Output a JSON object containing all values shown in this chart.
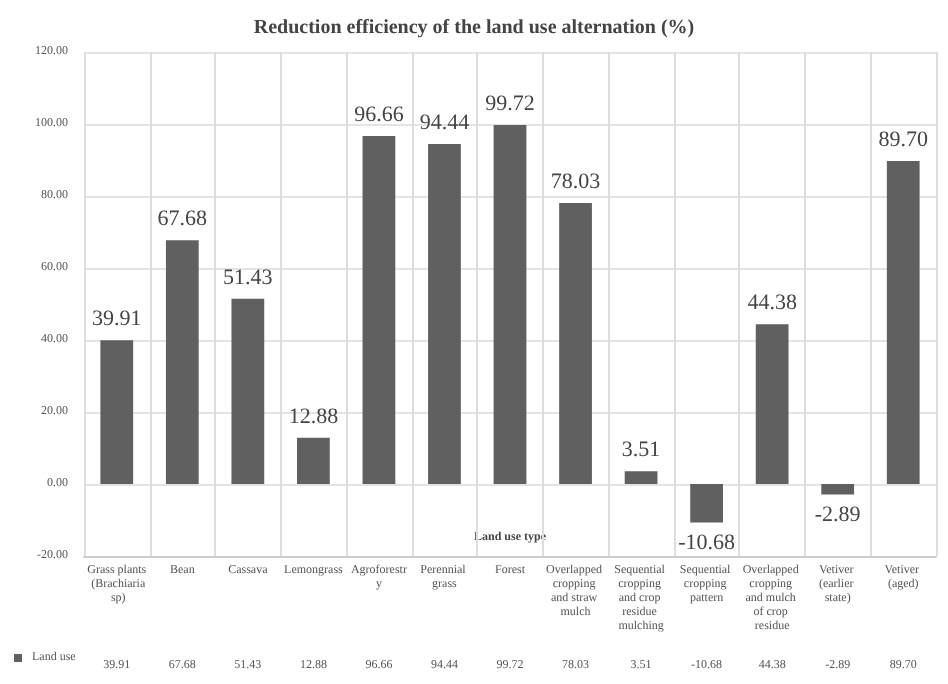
{
  "chart_data": {
    "type": "bar",
    "title": "Reduction efficiency of the land use alternation (%)",
    "xlabel": "Land use type",
    "categories": [
      "Grass plants (Brachiaria sp)",
      "Bean",
      "Cassava",
      "Lemongrass",
      "Agroforestry",
      "Perennial grass",
      "Forest",
      "Overlapped cropping and straw mulch",
      "Sequential cropping and crop residue mulching",
      "Sequential cropping pattern",
      "Overlapped cropping and mulch of crop residue",
      "Vetiver (earlier state)",
      "Vetiver (aged)"
    ],
    "series": [
      {
        "name": "Land use",
        "color": "#606060",
        "values": [
          39.91,
          67.68,
          51.43,
          12.88,
          96.66,
          94.44,
          99.72,
          78.03,
          3.51,
          -10.68,
          44.38,
          -2.89,
          89.7
        ],
        "value_labels": [
          "39.91",
          "67.68",
          "51.43",
          "12.88",
          "96.66",
          "94.44",
          "99.72",
          "78.03",
          "3.51",
          "-10.68",
          "44.38",
          "-2.89",
          "89.70"
        ]
      }
    ],
    "ylim": [
      -20,
      120
    ],
    "yticks": [
      {
        "value": -20,
        "label": "-20.00"
      },
      {
        "value": 0,
        "label": "0.00"
      },
      {
        "value": 20,
        "label": "20.00"
      },
      {
        "value": 40,
        "label": "40.00"
      },
      {
        "value": 60,
        "label": "60.00"
      },
      {
        "value": 80,
        "label": "80.00"
      },
      {
        "value": 100,
        "label": "100.00"
      },
      {
        "value": 120,
        "label": "120.00"
      }
    ],
    "grid": "y",
    "legend": "bottom left"
  }
}
